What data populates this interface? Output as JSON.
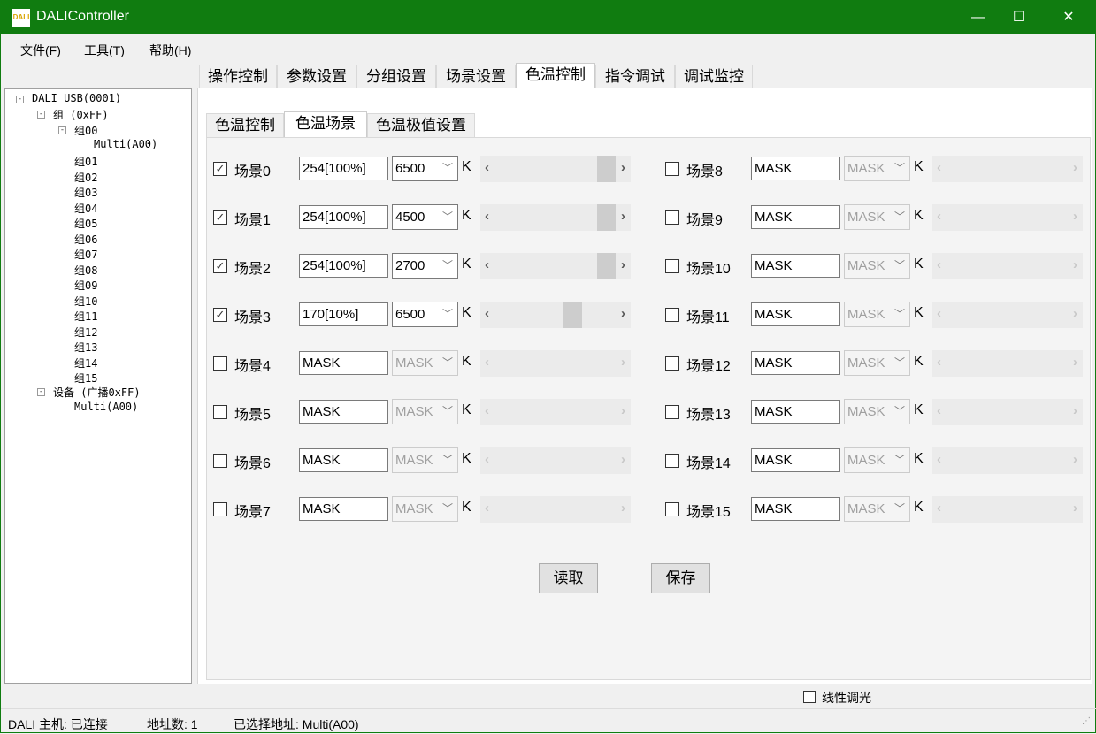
{
  "window": {
    "title": "DALIController",
    "app_icon": "DALI",
    "controls": {
      "minimize": "—",
      "maximize": "☐",
      "close": "✕"
    }
  },
  "menu": [
    "文件(F)",
    "工具(T)",
    "帮助(H)"
  ],
  "tabs": [
    "操作控制",
    "参数设置",
    "分组设置",
    "场景设置",
    "色温控制",
    "指令调试",
    "调试监控"
  ],
  "active_tab": "色温控制",
  "subtabs": [
    "色温控制",
    "色温场景",
    "色温极值设置"
  ],
  "active_subtab": "色温场景",
  "tree": {
    "root": "DALI USB(0001)",
    "group_root": "组 (0xFF)",
    "group00": "组00",
    "group00_child": "Multi(A00)",
    "groups": [
      "组01",
      "组02",
      "组03",
      "组04",
      "组05",
      "组06",
      "组07",
      "组08",
      "组09",
      "组10",
      "组11",
      "组12",
      "组13",
      "组14",
      "组15"
    ],
    "devices": "设备 (广播0xFF)",
    "device_child": "Multi(A00)"
  },
  "unit": "K",
  "scenes": [
    {
      "label": "场景0",
      "checked": true,
      "level": "254[100%]",
      "cct": "6500",
      "slider": 254
    },
    {
      "label": "场景1",
      "checked": true,
      "level": "254[100%]",
      "cct": "4500",
      "slider": 254
    },
    {
      "label": "场景2",
      "checked": true,
      "level": "254[100%]",
      "cct": "2700",
      "slider": 254
    },
    {
      "label": "场景3",
      "checked": true,
      "level": "170[10%]",
      "cct": "6500",
      "slider": 170
    },
    {
      "label": "场景4",
      "checked": false,
      "level": "MASK",
      "cct": "MASK"
    },
    {
      "label": "场景5",
      "checked": false,
      "level": "MASK",
      "cct": "MASK"
    },
    {
      "label": "场景6",
      "checked": false,
      "level": "MASK",
      "cct": "MASK"
    },
    {
      "label": "场景7",
      "checked": false,
      "level": "MASK",
      "cct": "MASK"
    },
    {
      "label": "场景8",
      "checked": false,
      "level": "MASK",
      "cct": "MASK"
    },
    {
      "label": "场景9",
      "checked": false,
      "level": "MASK",
      "cct": "MASK"
    },
    {
      "label": "场景10",
      "checked": false,
      "level": "MASK",
      "cct": "MASK"
    },
    {
      "label": "场景11",
      "checked": false,
      "level": "MASK",
      "cct": "MASK"
    },
    {
      "label": "场景12",
      "checked": false,
      "level": "MASK",
      "cct": "MASK"
    },
    {
      "label": "场景13",
      "checked": false,
      "level": "MASK",
      "cct": "MASK"
    },
    {
      "label": "场景14",
      "checked": false,
      "level": "MASK",
      "cct": "MASK"
    },
    {
      "label": "场景15",
      "checked": false,
      "level": "MASK",
      "cct": "MASK"
    }
  ],
  "buttons": {
    "read": "读取",
    "save": "保存"
  },
  "linear_dimming": {
    "label": "线性调光",
    "checked": false
  },
  "status": {
    "host": "DALI 主机: 已连接",
    "count": "地址数: 1",
    "selected": "已选择地址: Multi(A00)"
  },
  "colors": {
    "titlebar": "#107c10"
  }
}
